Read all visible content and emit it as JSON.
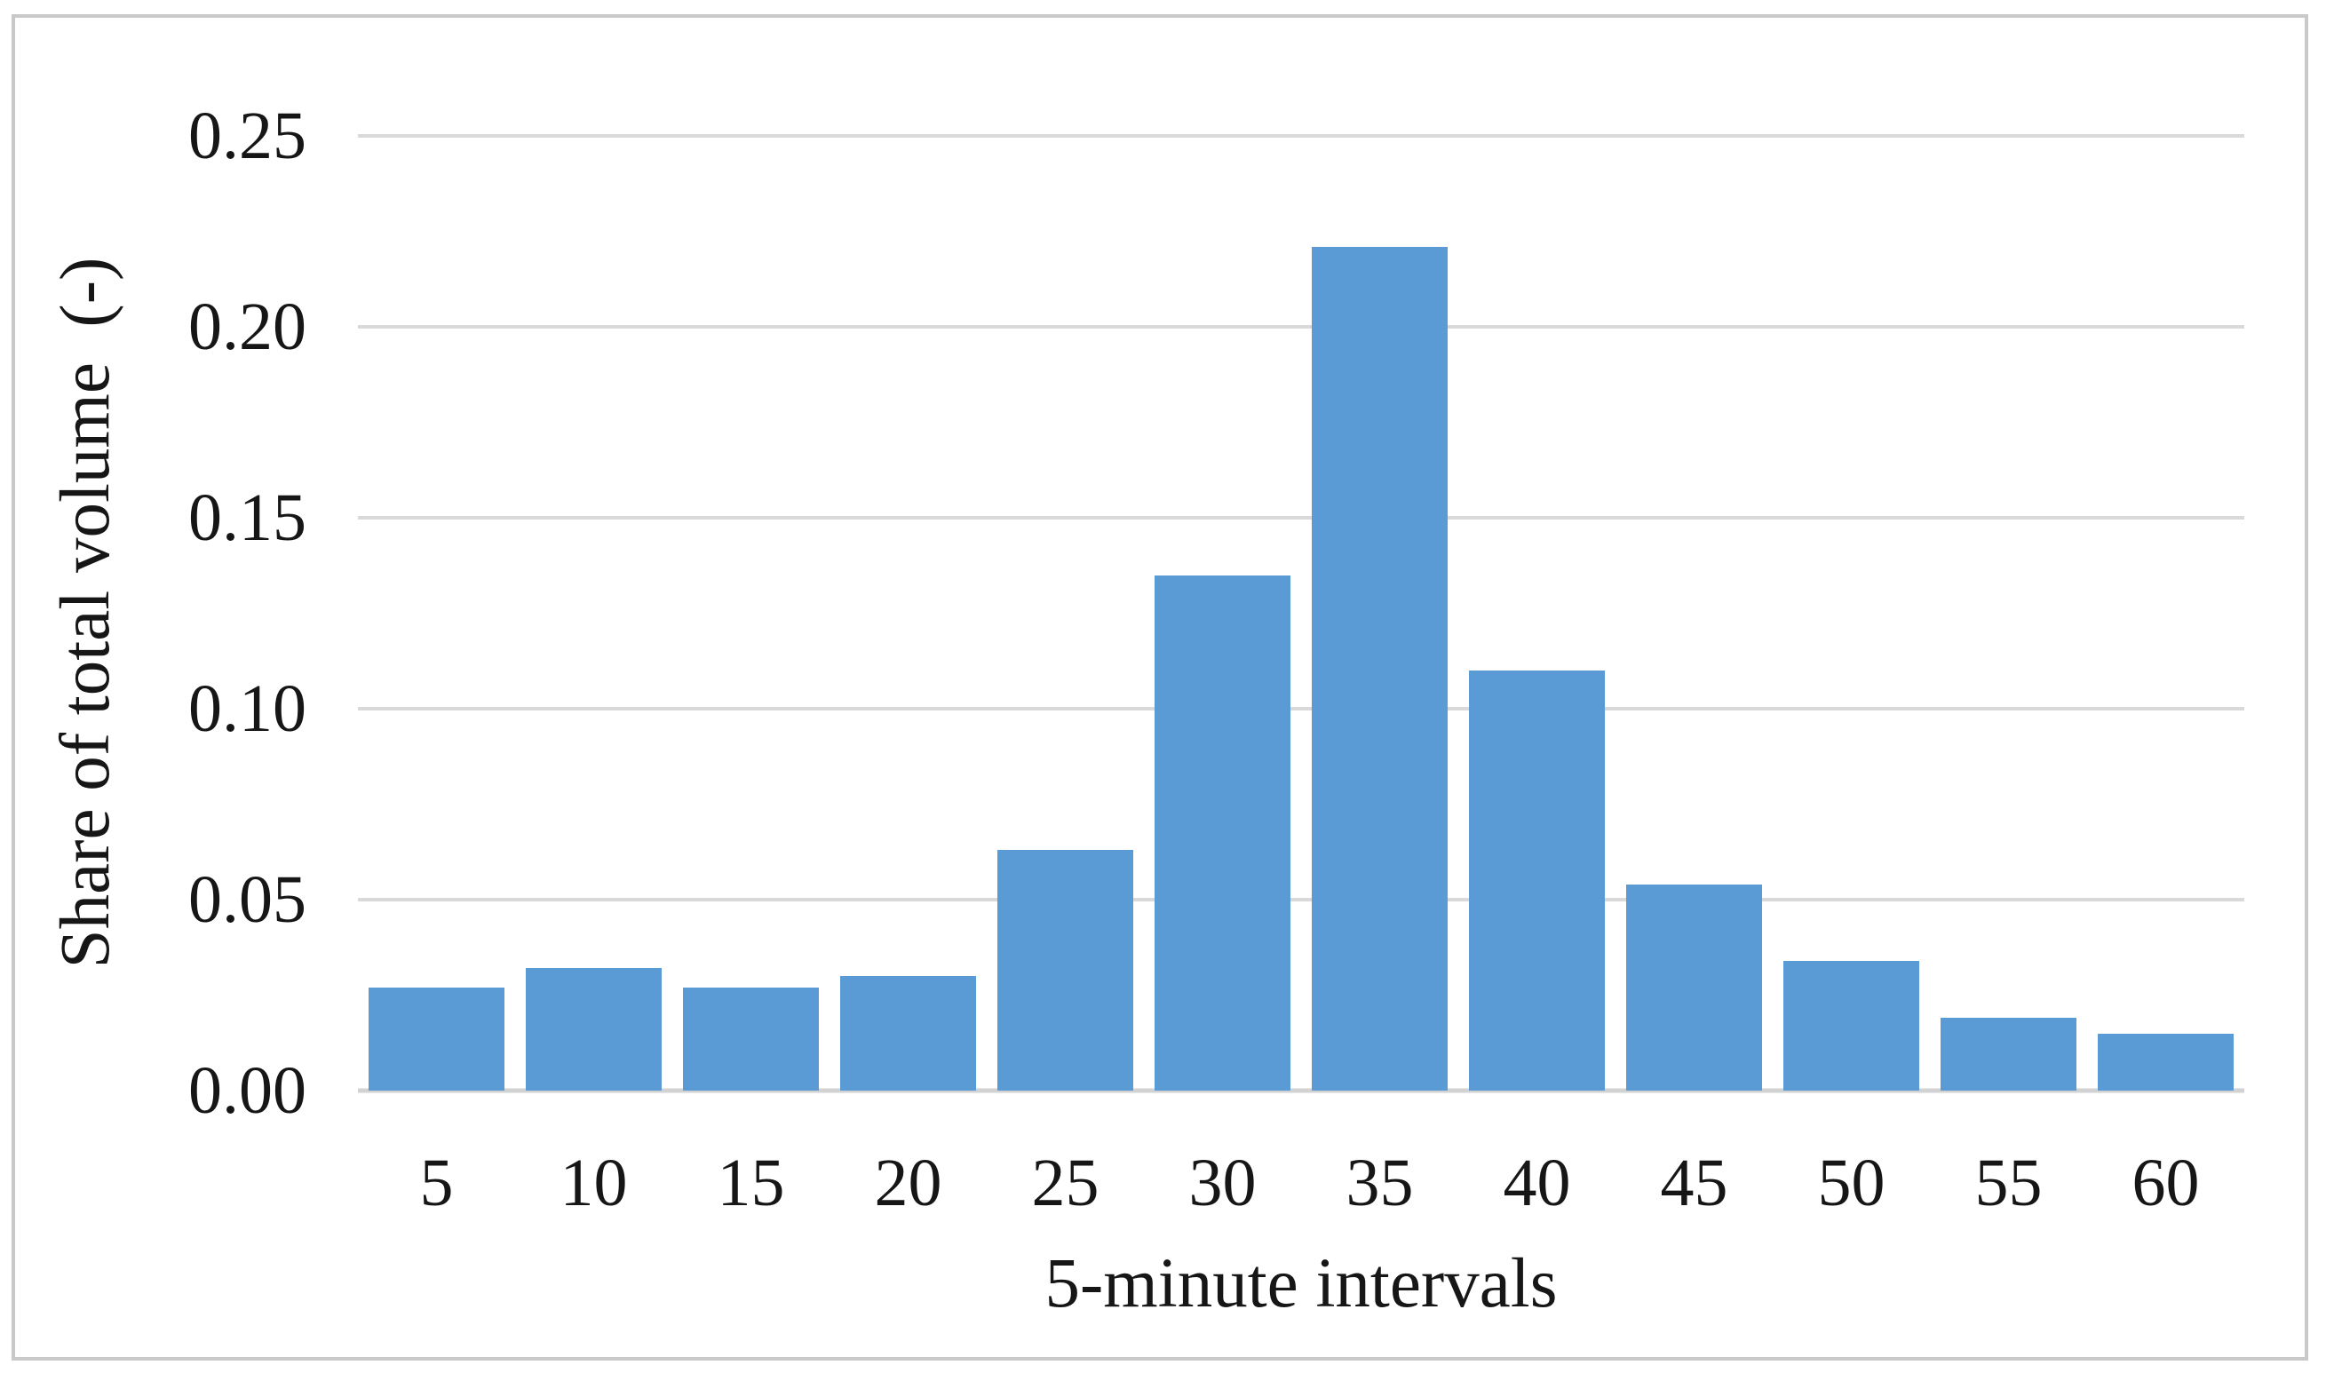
{
  "figure": {
    "background_color": "#FFFFFF",
    "border_color": "#C9C9C9",
    "text_color": "#161616"
  },
  "chart_data": {
    "type": "bar",
    "title": "",
    "categories": [
      "5",
      "10",
      "15",
      "20",
      "25",
      "30",
      "35",
      "40",
      "45",
      "50",
      "55",
      "60"
    ],
    "values": [
      0.027,
      0.032,
      0.027,
      0.03,
      0.063,
      0.135,
      0.221,
      0.11,
      0.054,
      0.034,
      0.019,
      0.015
    ],
    "xlabel": "5-minute intervals",
    "ylabel": "Share of total volume  (-)",
    "ylim": [
      0,
      0.25
    ],
    "yticks": [
      {
        "label": "0.25",
        "value": 0.25
      },
      {
        "label": "0.20",
        "value": 0.2
      },
      {
        "label": "0.15",
        "value": 0.15
      },
      {
        "label": "0.10",
        "value": 0.1
      },
      {
        "label": "0.05",
        "value": 0.05
      },
      {
        "label": "0.00",
        "value": 0.0
      }
    ],
    "grid": true,
    "legend": false,
    "bar_color": "#5B9BD5",
    "gridline_color": "#D9D9D9",
    "axis_line_color": "#D2D2D2"
  }
}
